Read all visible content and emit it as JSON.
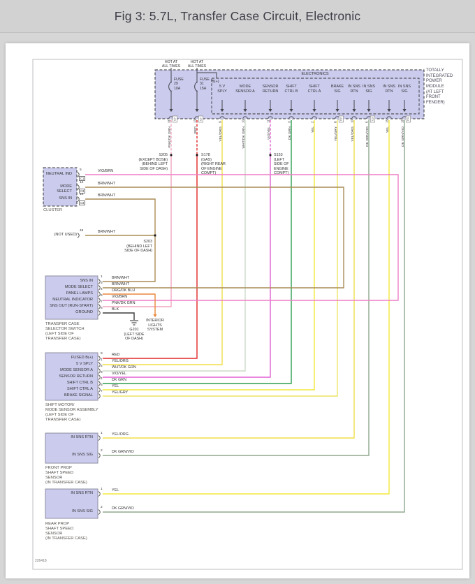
{
  "header": {
    "title": "Fig 3: 5.7L, Transfer Case Circuit, Electronic"
  },
  "diagram": {
    "ref": "226418",
    "hot_at": "HOT AT\nALL TIMES",
    "tipm": {
      "label": "TOTALLY\nINTEGRATED\nPOWER\nMODULE\n(AT LEFT\nFRONT\nFENDER)",
      "electronics_label": "ELECTRONICS",
      "b_plus": "B(+)",
      "fuses": [
        {
          "label": "FUSE\n29\n10A",
          "pin": "31",
          "conn": "C7",
          "wire": "PNK/DK GRN"
        },
        {
          "label": "FUSE\n31\n15A",
          "pin": "13",
          "conn": "C7",
          "wire": "RED"
        }
      ],
      "terminals": [
        {
          "label": "5 V\nSPLY",
          "pin": "9",
          "conn": "",
          "wire": "YEL/ORG"
        },
        {
          "label": "MODE\nSENSOR A",
          "pin": "10",
          "conn": "",
          "wire": "WHT/DK GRN"
        },
        {
          "label": "SENSOR\nRETURN",
          "pin": "11",
          "conn": "",
          "wire": "VIO/YEL"
        },
        {
          "label": "SHIFT\nCTRL B",
          "pin": "3",
          "conn": "",
          "wire": "DK GRN"
        },
        {
          "label": "SHIFT\nCTRL A",
          "pin": "2",
          "conn": "",
          "wire": "YEL"
        },
        {
          "label": "BRAKE\nSIG",
          "pin": "8",
          "conn": "C2",
          "wire": "YEL/GRY"
        },
        {
          "label": "IN SNS\nRTN",
          "pin": "10",
          "conn": "",
          "wire": "YEL/ORG"
        },
        {
          "label": "IN SNS\nSIG",
          "pin": "5",
          "conn": "C3",
          "wire": "DK GRN/VIO"
        },
        {
          "label": "IN SNS\nRTN",
          "pin": "15",
          "conn": "",
          "wire": "YEL"
        },
        {
          "label": "IN SNS\nSIG",
          "pin": "16",
          "conn": "C4",
          "wire": "DK GRN/VIO"
        }
      ]
    },
    "components": {
      "cluster": {
        "name": "CLUSTER",
        "pins": [
          {
            "label": "NEUTRAL IND",
            "pin": "5",
            "conn": "C1",
            "wire": "VIO/BRN"
          },
          {
            "label": "MODE SELECT",
            "pin": "12",
            "conn": "C3",
            "wire": "BRN/WHT"
          },
          {
            "label": "SNS IN",
            "pin": "14",
            "conn": "C3",
            "wire": "BRN/WHT"
          }
        ]
      },
      "not_used": {
        "label": "(NOT USED)",
        "pin": "46",
        "wire": "BRN/WHT"
      },
      "selector_switch": {
        "name": "TRANSFER CASE\nSELECTOR SWITCH\n(LEFT SIDE OF\nTRANSFER CASE)",
        "pins": [
          {
            "label": "SNS IN",
            "pin": "1",
            "wire": "BRN/WHT"
          },
          {
            "label": "MODE SELECT",
            "pin": "3",
            "wire": "BRN/WHT"
          },
          {
            "label": "PANEL LAMPS",
            "pin": "4",
            "wire": "ORG/DK BLU"
          },
          {
            "label": "NEUTRAL INDICATOR",
            "pin": "6",
            "wire": "VIO/BRN"
          },
          {
            "label": "SNS OUT (RUN-START)",
            "pin": "7",
            "wire": "PNK/DK GRN"
          },
          {
            "label": "GROUND",
            "pin": "5",
            "wire": "BLK"
          }
        ]
      },
      "shift_motor": {
        "name": "SHIFT MOTOR/\nMODE SENSOR ASSEMBLY\n(LEFT SIDE OF\nTRANSFER CASE)",
        "pins": [
          {
            "label": "FUSED B(+)",
            "pin": "8",
            "wire": "RED"
          },
          {
            "label": "5 V SPLY",
            "pin": "1",
            "wire": "YEL/ORG"
          },
          {
            "label": "MODE SENSOR A",
            "pin": "2",
            "wire": "WHT/DK GRN"
          },
          {
            "label": "SENSOR RETURN",
            "pin": "3",
            "wire": "VIO/YEL"
          },
          {
            "label": "SHIFT CTRL B",
            "pin": "4",
            "wire": "DK GRN"
          },
          {
            "label": "SHIFT CTRL A",
            "pin": "5",
            "wire": "YEL"
          },
          {
            "label": "BRAKE SIGNAL",
            "pin": "7",
            "wire": "YEL/GRY"
          }
        ]
      },
      "front_sensor": {
        "name": "FRONT PROP\nSHAFT SPEED\nSENSOR\n(IN TRANSFER CASE)",
        "pins": [
          {
            "label": "IN SNS RTN",
            "pin": "1",
            "wire": "YEL/ORG"
          },
          {
            "label": "IN SNS SIG",
            "pin": "2",
            "wire": "DK GRN/VIO"
          }
        ]
      },
      "rear_sensor": {
        "name": "REAR PROP\nSHAFT SPEED\nSENSOR\n(IN TRANSFER CASE)",
        "pins": [
          {
            "label": "IN SNS RTN",
            "pin": "1",
            "wire": "YEL"
          },
          {
            "label": "IN SNS SIG",
            "pin": "2",
            "wire": "DK GRN/VIO"
          }
        ]
      }
    },
    "splices": {
      "s205": "S205\n(EXCEPT BOSE)\n(BEHIND LEFT\nSIDE OF DASH)",
      "s178": "S178\n(GAS)\n(RIGHT REAR\nOF ENGINE\nCOMPT)",
      "s153": "S153\n(LEFT\nSIDE OF\nENGINE\nCOMPT)",
      "s203": "S203\n(BEHIND LEFT\nSIDE OF DASH)"
    },
    "ground": "G201\n(LEFT SIDE\nOF DASH)",
    "interior_lights": "INTERIOR\nLIGHTS\nSYSTEM",
    "wire_colors": {
      "VIO/BRN": "#ee7fc6",
      "BRN/WHT": "#aa8c55",
      "ORG/DK BLU": "#e8873b",
      "PNK/DK GRN": "#f2a6c2",
      "RED": "#e02828",
      "YEL/ORG": "#efdf4a",
      "WHT/DK GRN": "#cbdcc7",
      "VIO/YEL": "#e25fd3",
      "DK GRN": "#2f9e50",
      "YEL": "#f2e83a",
      "YEL/GRY": "#ece364",
      "DK GRN/VIO": "#8fa98d",
      "BLK": "#3c3c3c"
    }
  }
}
